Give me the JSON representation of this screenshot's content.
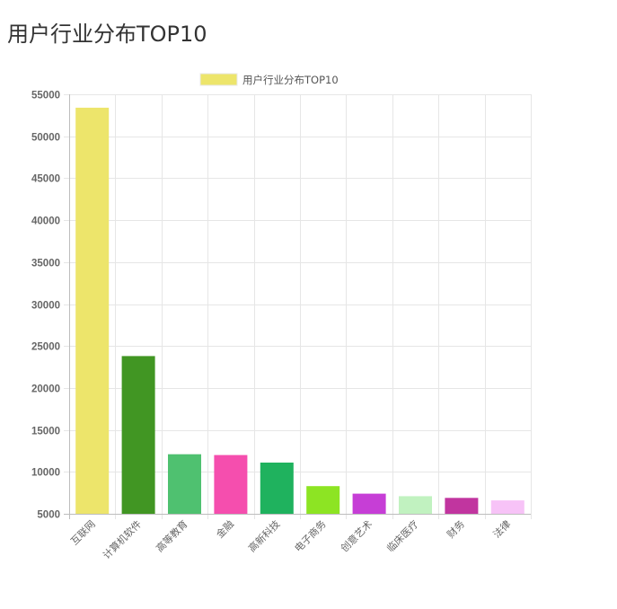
{
  "page": {
    "title": "用户行业分布TOP10"
  },
  "chart_data": {
    "type": "bar",
    "title": "",
    "xlabel": "",
    "ylabel": "",
    "legend": {
      "position": "top-center",
      "entries": [
        "用户行业分布TOP10"
      ]
    },
    "grid": true,
    "ylim": [
      5000,
      55000
    ],
    "y_ticks": [
      5000,
      10000,
      15000,
      20000,
      25000,
      30000,
      35000,
      40000,
      45000,
      50000,
      55000
    ],
    "categories": [
      "互联网",
      "计算机软件",
      "高等教育",
      "金融",
      "高新科技",
      "电子商务",
      "创意艺术",
      "临床医疗",
      "财务",
      "法律"
    ],
    "series": [
      {
        "name": "用户行业分布TOP10",
        "values": [
          53400,
          23800,
          12100,
          12000,
          11100,
          8300,
          7400,
          7100,
          6900,
          6600
        ],
        "colors": [
          "#ede56b",
          "#419623",
          "#4fc170",
          "#f54eae",
          "#1fb25e",
          "#8de423",
          "#c63ed6",
          "#c1f2c0",
          "#c1359f",
          "#f7c3f7"
        ]
      }
    ],
    "legend_color": "#ede56b"
  }
}
